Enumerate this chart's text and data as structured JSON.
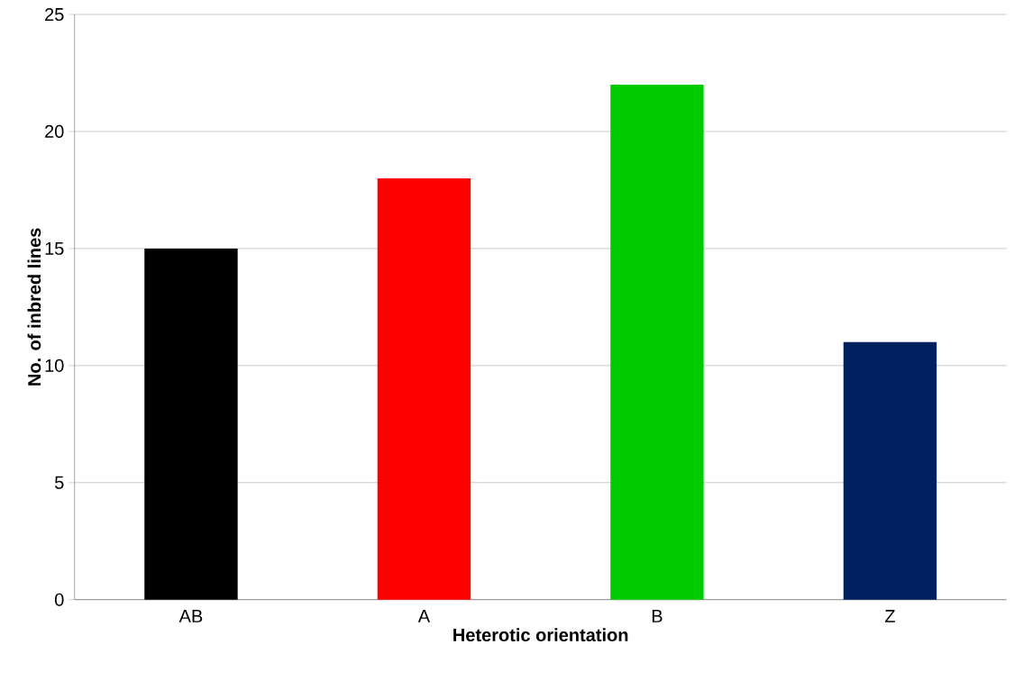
{
  "chart_data": {
    "type": "bar",
    "xlabel": "Heterotic orientation",
    "ylabel": "No. of inbred lines",
    "categories": [
      "AB",
      "A",
      "B",
      "Z"
    ],
    "values": [
      15,
      18,
      22,
      11
    ],
    "colors": [
      "#000000",
      "#ff0000",
      "#00cc00",
      "#002060"
    ],
    "ylim": [
      0,
      25
    ],
    "yticks": [
      0,
      5,
      10,
      15,
      20,
      25
    ],
    "grid": "y"
  }
}
